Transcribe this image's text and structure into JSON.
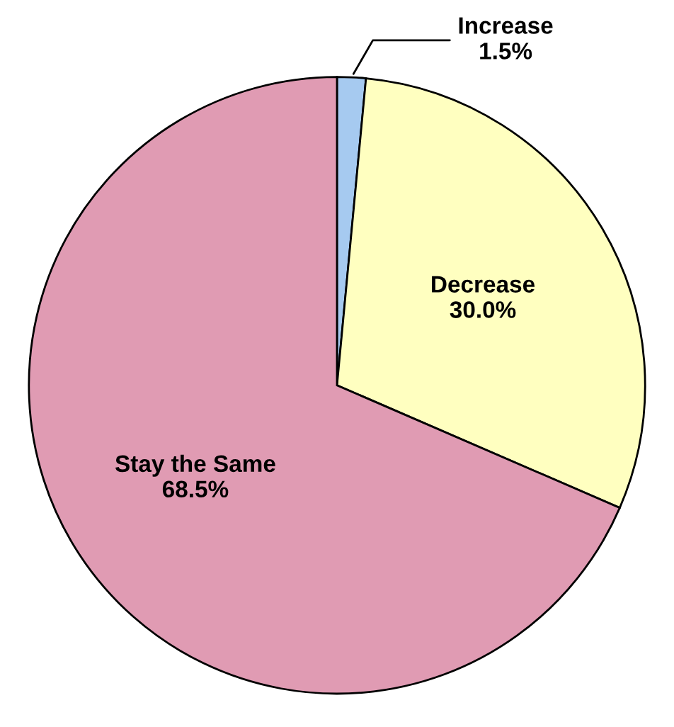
{
  "chart_data": {
    "type": "pie",
    "categories": [
      "Increase",
      "Decrease",
      "Stay the Same"
    ],
    "values": [
      1.5,
      30.0,
      68.5
    ],
    "value_labels": [
      "1.5%",
      "30.0%",
      "68.5%"
    ],
    "colors": [
      "#a6caf0",
      "#ffffc0",
      "#e09bb3"
    ]
  }
}
